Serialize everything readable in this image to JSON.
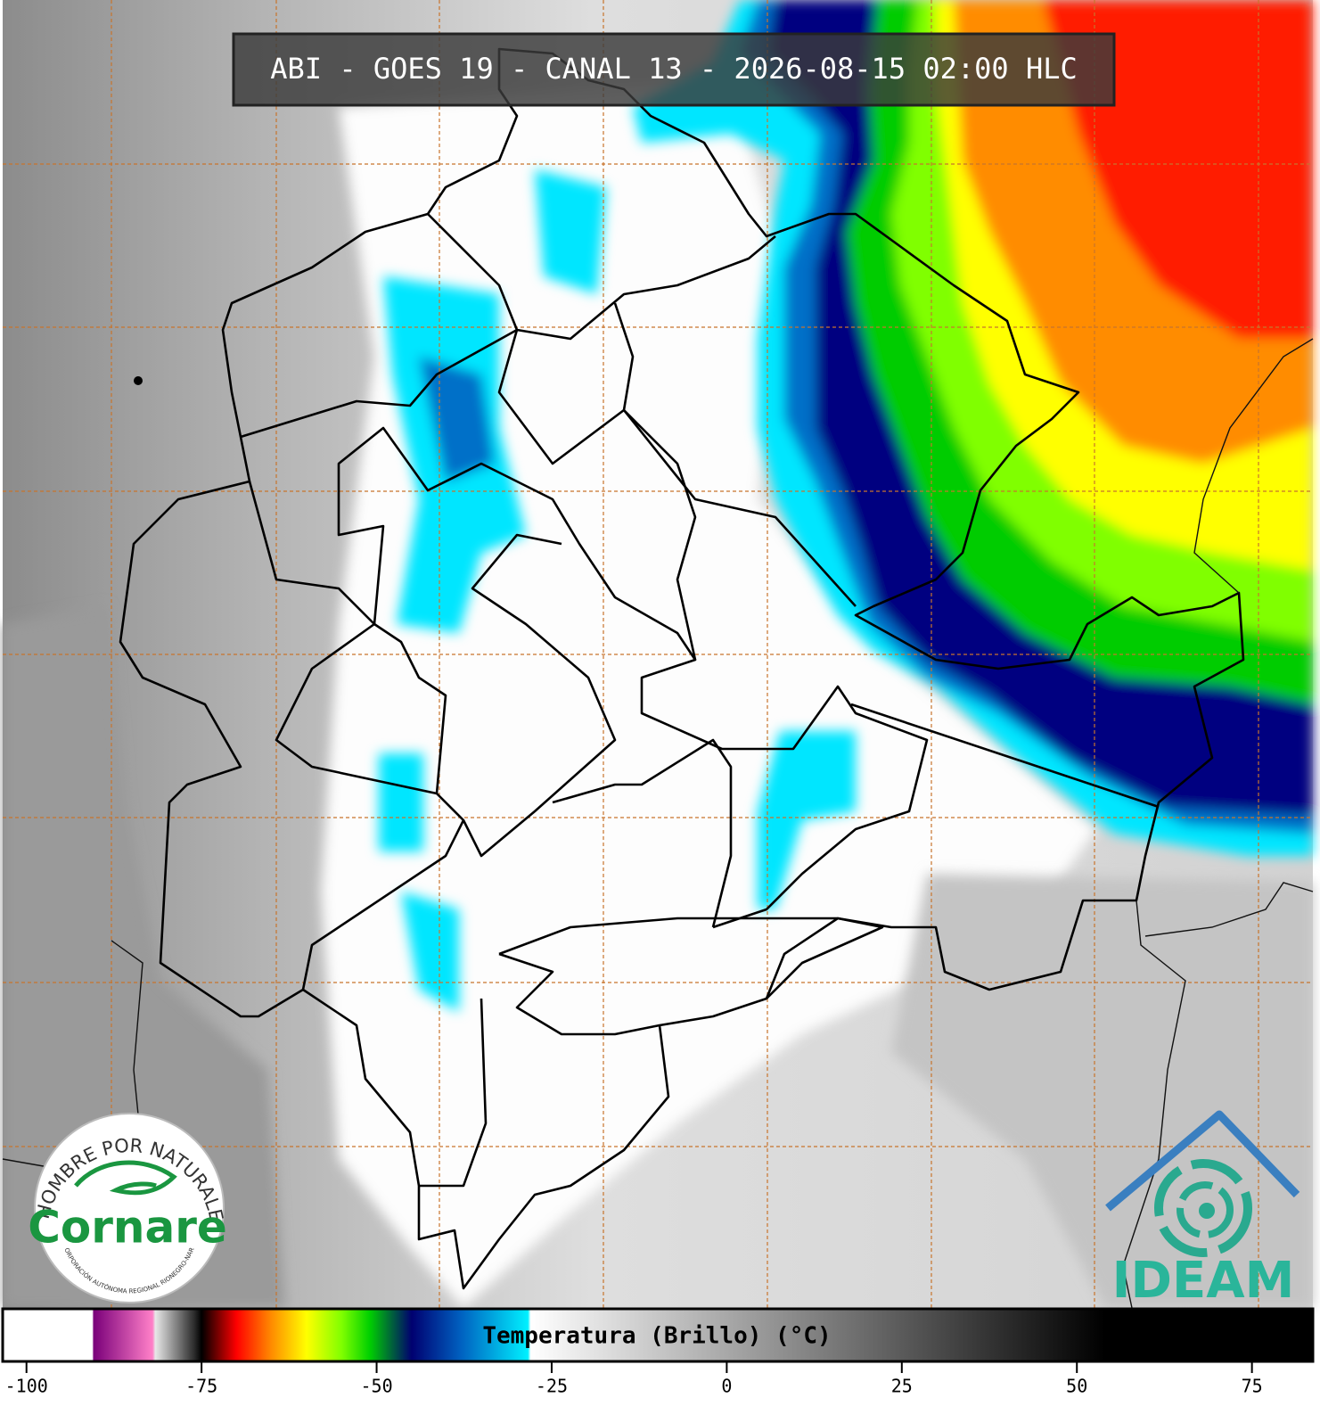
{
  "header": {
    "title": "ABI - GOES 19 - CANAL 13 - 2026-08-15 02:00 HLC"
  },
  "colorbar": {
    "label": "Temperatura (Brillo) (°C)",
    "range": [
      -103.4,
      83.7
    ],
    "ticks": [
      -100,
      -75,
      -50,
      -25,
      0,
      25,
      50,
      75
    ],
    "stops": [
      {
        "value": -103.4,
        "color": "#ffffff"
      },
      {
        "value": -90.6,
        "color": "#ffffff"
      },
      {
        "value": -90.4,
        "color": "#7a007a"
      },
      {
        "value": -82,
        "color": "#ff80c8"
      },
      {
        "value": -81.6,
        "color": "#e8e8e8"
      },
      {
        "value": -76,
        "color": "#2a2a2a"
      },
      {
        "value": -75,
        "color": "#000000"
      },
      {
        "value": -70,
        "color": "#ff0000"
      },
      {
        "value": -65,
        "color": "#ff8c00"
      },
      {
        "value": -60,
        "color": "#ffff00"
      },
      {
        "value": -55,
        "color": "#80ff00"
      },
      {
        "value": -51,
        "color": "#00d000"
      },
      {
        "value": -45,
        "color": "#000070"
      },
      {
        "value": -38,
        "color": "#0060c0"
      },
      {
        "value": -28.4,
        "color": "#00f0ff"
      },
      {
        "value": -28,
        "color": "#ffffff"
      },
      {
        "value": 54,
        "color": "#000000"
      },
      {
        "value": 83.7,
        "color": "#000000"
      }
    ]
  },
  "logos": {
    "cornare": {
      "motto": "EL HOMBRE POR NATURALEZA",
      "name": "Cornare",
      "subtitle": "CORPORACIÓN AUTÓNOMA REGIONAL RIONEGRO-NARE"
    },
    "ideam": {
      "name": "IDEAM"
    }
  }
}
